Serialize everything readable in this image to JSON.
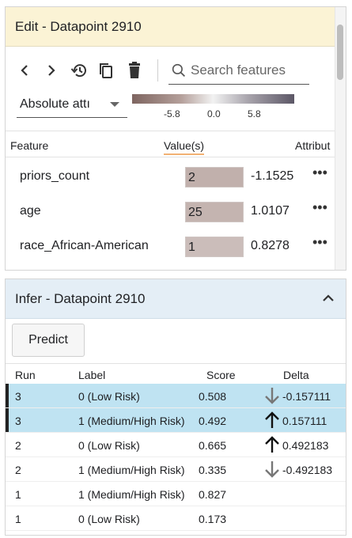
{
  "edit": {
    "title": "Edit - Datapoint 2910",
    "search_placeholder": "Search features",
    "attribution_select": "Absolute attı",
    "colorbar_ticks": [
      "-5.8",
      "0.0",
      "5.8"
    ],
    "colors": {
      "low": "#7e6560",
      "mid": "#f2f2f2",
      "high": "#5c5766"
    },
    "columns": {
      "feature": "Feature",
      "value": "Value(s)",
      "attribution": "Attribut"
    },
    "rows": [
      {
        "feature": "priors_count",
        "value": "2",
        "attribution": "-1.1525",
        "fill": "#c1b0ac"
      },
      {
        "feature": "age",
        "value": "25",
        "attribution": "1.0107",
        "fill": "#c4b4b0"
      },
      {
        "feature": "race_African-American",
        "value": "1",
        "attribution": "0.8278",
        "fill": "#cbbdba"
      },
      {
        "feature": "",
        "value": "",
        "attribution": "",
        "fill": "#d1c5c2"
      }
    ],
    "more_label": "•••"
  },
  "infer": {
    "title": "Infer - Datapoint 2910",
    "predict_label": "Predict",
    "columns": {
      "run": "Run",
      "label": "Label",
      "score": "Score",
      "delta": "Delta"
    },
    "rows": [
      {
        "run": "3",
        "label": "0 (Low Risk)",
        "score": "0.508",
        "delta": "-0.157111",
        "direction": "down",
        "selected": true
      },
      {
        "run": "3",
        "label": "1 (Medium/High Risk)",
        "score": "0.492",
        "delta": "0.157111",
        "direction": "up",
        "selected": true
      },
      {
        "run": "2",
        "label": "0 (Low Risk)",
        "score": "0.665",
        "delta": "0.492183",
        "direction": "up",
        "selected": false
      },
      {
        "run": "2",
        "label": "1 (Medium/High Risk)",
        "score": "0.335",
        "delta": "-0.492183",
        "direction": "down",
        "selected": false
      },
      {
        "run": "1",
        "label": "1 (Medium/High Risk)",
        "score": "0.827",
        "delta": "",
        "direction": "",
        "selected": false
      },
      {
        "run": "1",
        "label": "0 (Low Risk)",
        "score": "0.173",
        "delta": "",
        "direction": "",
        "selected": false
      }
    ]
  }
}
